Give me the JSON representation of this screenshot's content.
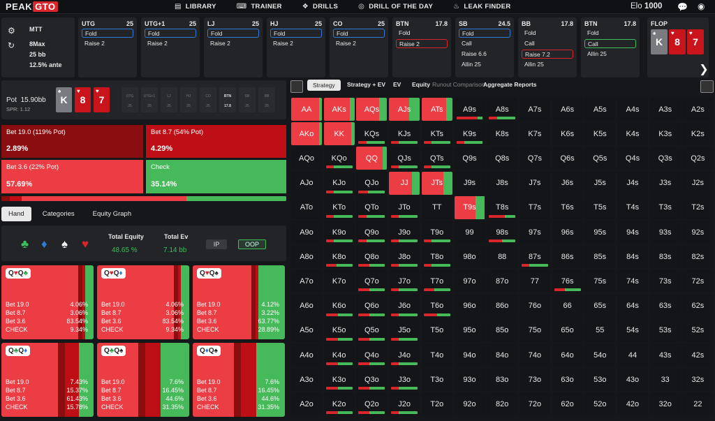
{
  "brand": {
    "part1": "PEAK",
    "part2": "GTO"
  },
  "nav": [
    {
      "icon": "book-icon",
      "label": "LIBRARY",
      "glyph": "▤"
    },
    {
      "icon": "gamepad-icon",
      "label": "TRAINER",
      "glyph": "⌨"
    },
    {
      "icon": "drills-icon",
      "label": "DRILLS",
      "glyph": "❖"
    },
    {
      "icon": "target-icon",
      "label": "DRILL OF THE DAY",
      "glyph": "◎"
    },
    {
      "icon": "flame-icon",
      "label": "LEAK FINDER",
      "glyph": "♨"
    }
  ],
  "elo": {
    "label": "Elo",
    "value": "1000"
  },
  "game": {
    "type": "MTT",
    "players": "8Max",
    "stack": "25 bb",
    "ante": "12.5% ante"
  },
  "positions": [
    {
      "name": "UTG",
      "stack": "25",
      "actions": [
        {
          "label": "Fold",
          "sel": "blue"
        },
        {
          "label": "Raise 2",
          "sel": ""
        }
      ]
    },
    {
      "name": "UTG+1",
      "stack": "25",
      "actions": [
        {
          "label": "Fold",
          "sel": "blue"
        },
        {
          "label": "Raise 2",
          "sel": ""
        }
      ]
    },
    {
      "name": "LJ",
      "stack": "25",
      "actions": [
        {
          "label": "Fold",
          "sel": "blue"
        },
        {
          "label": "Raise 2",
          "sel": ""
        }
      ]
    },
    {
      "name": "HJ",
      "stack": "25",
      "actions": [
        {
          "label": "Fold",
          "sel": "blue"
        },
        {
          "label": "Raise 2",
          "sel": ""
        }
      ]
    },
    {
      "name": "CO",
      "stack": "25",
      "actions": [
        {
          "label": "Fold",
          "sel": "blue"
        },
        {
          "label": "Raise 2",
          "sel": ""
        }
      ]
    },
    {
      "name": "BTN",
      "stack": "17.8",
      "actions": [
        {
          "label": "Fold",
          "sel": ""
        },
        {
          "label": "Raise 2",
          "sel": "red"
        }
      ]
    },
    {
      "name": "SB",
      "stack": "24.5",
      "actions": [
        {
          "label": "Fold",
          "sel": "blue"
        },
        {
          "label": "Call",
          "sel": ""
        },
        {
          "label": "Raise 6.6",
          "sel": ""
        },
        {
          "label": "Allin 25",
          "sel": ""
        }
      ]
    },
    {
      "name": "BB",
      "stack": "17.8",
      "actions": [
        {
          "label": "Fold",
          "sel": ""
        },
        {
          "label": "Call",
          "sel": ""
        },
        {
          "label": "Raise 7.2",
          "sel": "red"
        },
        {
          "label": "Allin 25",
          "sel": ""
        }
      ]
    },
    {
      "name": "BTN",
      "stack": "17.8",
      "actions": [
        {
          "label": "Fold",
          "sel": ""
        },
        {
          "label": "Call",
          "sel": "green"
        },
        {
          "label": "Allin 25",
          "sel": ""
        }
      ]
    }
  ],
  "flop": {
    "label": "FLOP",
    "cards": [
      {
        "rank": "K",
        "suit": "♠",
        "color": "grey"
      },
      {
        "rank": "8",
        "suit": "♥",
        "color": "red"
      },
      {
        "rank": "7",
        "suit": "♥",
        "color": "red"
      }
    ]
  },
  "pot": {
    "label": "Pot",
    "value": "15.90bb",
    "spr": "SPR: 1.12",
    "cards": [
      {
        "rank": "K",
        "suit": "♠",
        "color": "grey"
      },
      {
        "rank": "8",
        "suit": "♥",
        "color": "red"
      },
      {
        "rank": "7",
        "suit": "♥",
        "color": "red"
      }
    ],
    "mini": [
      {
        "name": "UTG",
        "stack": "25"
      },
      {
        "name": "UTG+1",
        "stack": "25"
      },
      {
        "name": "LJ",
        "stack": "25"
      },
      {
        "name": "HJ",
        "stack": "25"
      },
      {
        "name": "CO",
        "stack": "25"
      },
      {
        "name": "BTN",
        "stack": "17.8"
      },
      {
        "name": "SB",
        "stack": "25"
      },
      {
        "name": "BB",
        "stack": "25"
      }
    ]
  },
  "actions": [
    {
      "label": "Bet 19.0 (119% Pot)",
      "freq": "2.89%",
      "color": "#8a0d10",
      "fraction": 0.0289
    },
    {
      "label": "Bet 8.7 (54% Pot)",
      "freq": "4.29%",
      "color": "#bf0f16",
      "fraction": 0.0429
    },
    {
      "label": "Bet 3.6 (22% Pot)",
      "freq": "57.69%",
      "color": "#ec3d44",
      "fraction": 0.5769
    },
    {
      "label": "Check",
      "freq": "35.14%",
      "color": "#46b95a",
      "fraction": 0.3514
    }
  ],
  "tabs": [
    "Hand",
    "Categories",
    "Equity Graph"
  ],
  "equity": {
    "suits": [
      "♣",
      "♦",
      "♠",
      "♥"
    ],
    "suit_colors": [
      "#3bbf5b",
      "#2f7bd8",
      "#f0f0f0",
      "#d9252c"
    ],
    "total_equity_label": "Total Equity",
    "total_equity": "48.65 %",
    "total_ev_label": "Total Ev",
    "total_ev": "7.14 bb",
    "ip": "IP",
    "oop": "OOP"
  },
  "combos": [
    {
      "cards": [
        {
          "r": "Q",
          "s": "♥",
          "c": "#d9252c"
        },
        {
          "r": "Q",
          "s": "♣",
          "c": "#2e9e49"
        }
      ],
      "vals": [
        "4.06%",
        "3.06%",
        "83.54%",
        "9.34%"
      ]
    },
    {
      "cards": [
        {
          "r": "Q",
          "s": "♥",
          "c": "#d9252c"
        },
        {
          "r": "Q",
          "s": "♦",
          "c": "#2f7bd8"
        }
      ],
      "vals": [
        "4.06%",
        "3.06%",
        "83.54%",
        "9.34%"
      ]
    },
    {
      "cards": [
        {
          "r": "Q",
          "s": "♥",
          "c": "#d9252c"
        },
        {
          "r": "Q",
          "s": "♠",
          "c": "#222"
        }
      ],
      "vals": [
        "4.12%",
        "3.22%",
        "63.77%",
        "28.89%"
      ]
    },
    {
      "cards": [
        {
          "r": "Q",
          "s": "♣",
          "c": "#2e9e49"
        },
        {
          "r": "Q",
          "s": "♦",
          "c": "#2f7bd8"
        }
      ],
      "vals": [
        "7.43%",
        "15.37%",
        "61.43%",
        "15.78%"
      ]
    },
    {
      "cards": [
        {
          "r": "Q",
          "s": "♣",
          "c": "#2e9e49"
        },
        {
          "r": "Q",
          "s": "♠",
          "c": "#222"
        }
      ],
      "vals": [
        "7.6%",
        "16.45%",
        "44.6%",
        "31.35%"
      ]
    },
    {
      "cards": [
        {
          "r": "Q",
          "s": "♦",
          "c": "#2f7bd8"
        },
        {
          "r": "Q",
          "s": "♠",
          "c": "#222"
        }
      ],
      "vals": [
        "7.6%",
        "16.45%",
        "44.6%",
        "31.35%"
      ]
    }
  ],
  "combo_labels": [
    "Bet 19.0",
    "Bet 8.7",
    "Bet 3.6",
    "CHECK"
  ],
  "right_tabs": [
    "Strategy",
    "Strategy + EV",
    "EV",
    "Equity",
    "Runout Comparison",
    "Aggregate Reports"
  ],
  "grid": {
    "labels": [
      [
        "AA",
        "AKs",
        "AQs",
        "AJs",
        "ATs",
        "A9s",
        "A8s",
        "A7s",
        "A6s",
        "A5s",
        "A4s",
        "A3s",
        "A2s"
      ],
      [
        "AKo",
        "KK",
        "KQs",
        "KJs",
        "KTs",
        "K9s",
        "K8s",
        "K7s",
        "K6s",
        "K5s",
        "K4s",
        "K3s",
        "K2s"
      ],
      [
        "AQo",
        "KQo",
        "QQ",
        "QJs",
        "QTs",
        "Q9s",
        "Q8s",
        "Q7s",
        "Q6s",
        "Q5s",
        "Q4s",
        "Q3s",
        "Q2s"
      ],
      [
        "AJo",
        "KJo",
        "QJo",
        "JJ",
        "JTs",
        "J9s",
        "J8s",
        "J7s",
        "J6s",
        "J5s",
        "J4s",
        "J3s",
        "J2s"
      ],
      [
        "ATo",
        "KTo",
        "QTo",
        "JTo",
        "TT",
        "T9s",
        "T8s",
        "T7s",
        "T6s",
        "T5s",
        "T4s",
        "T3s",
        "T2s"
      ],
      [
        "A9o",
        "K9o",
        "Q9o",
        "J9o",
        "T9o",
        "99",
        "98s",
        "97s",
        "96s",
        "95s",
        "94s",
        "93s",
        "92s"
      ],
      [
        "A8o",
        "K8o",
        "Q8o",
        "J8o",
        "T8o",
        "98o",
        "88",
        "87s",
        "86s",
        "85s",
        "84s",
        "83s",
        "82s"
      ],
      [
        "A7o",
        "K7o",
        "Q7o",
        "J7o",
        "T7o",
        "97o",
        "87o",
        "77",
        "76s",
        "75s",
        "74s",
        "73s",
        "72s"
      ],
      [
        "A6o",
        "K6o",
        "Q6o",
        "J6o",
        "T6o",
        "96o",
        "86o",
        "76o",
        "66",
        "65s",
        "64s",
        "63s",
        "62s"
      ],
      [
        "A5o",
        "K5o",
        "Q5o",
        "J5o",
        "T5o",
        "95o",
        "85o",
        "75o",
        "65o",
        "55",
        "54s",
        "53s",
        "52s"
      ],
      [
        "A4o",
        "K4o",
        "Q4o",
        "J4o",
        "T4o",
        "94o",
        "84o",
        "74o",
        "64o",
        "54o",
        "44",
        "43s",
        "42s"
      ],
      [
        "A3o",
        "K3o",
        "Q3o",
        "J3o",
        "T3o",
        "93o",
        "83o",
        "73o",
        "63o",
        "53o",
        "43o",
        "33",
        "32s"
      ],
      [
        "A2o",
        "K2o",
        "Q2o",
        "J2o",
        "T2o",
        "92o",
        "82o",
        "72o",
        "62o",
        "52o",
        "42o",
        "32o",
        "22"
      ]
    ],
    "full": {
      "0,0": [
        0.9,
        0.1
      ],
      "0,1": [
        0.85,
        0.15
      ],
      "0,2": [
        0.75,
        0.25
      ],
      "0,3": [
        0.65,
        0.35
      ],
      "0,4": [
        0.8,
        0.2
      ],
      "1,0": [
        0.9,
        0.1
      ],
      "1,1": [
        0.9,
        0.1
      ],
      "2,2": [
        0.85,
        0.15
      ],
      "3,3": [
        0.75,
        0.25
      ],
      "3,4": [
        0.7,
        0.3
      ],
      "4,5": [
        0.7,
        0.3
      ]
    },
    "bars": {
      "0,5": [
        0.8,
        0.2
      ],
      "3,1": [
        0.3,
        0.7
      ],
      "3,2": [
        0.35,
        0.65
      ],
      "3,3": [
        0.3,
        0.7
      ],
      "4,6": [
        0.6,
        0.4
      ],
      "5,6": [
        0.5,
        0.5
      ],
      "6,7": [
        0.3,
        0.7
      ],
      "6,1": [
        0.4,
        0.6
      ],
      "6,2": [
        0.4,
        0.6
      ],
      "6,3": [
        0.3,
        0.7
      ],
      "7,2": [
        0.4,
        0.6
      ],
      "7,3": [
        0.3,
        0.7
      ],
      "7,4": [
        0.4,
        0.6
      ],
      "7,8": [
        0.4,
        0.6
      ],
      "8,1": [
        0.45,
        0.55
      ],
      "8,2": [
        0.4,
        0.6
      ],
      "8,3": [
        0.3,
        0.7
      ],
      "8,4": [
        0.5,
        0.5
      ],
      "9,1": [
        0.45,
        0.55
      ],
      "9,2": [
        0.4,
        0.6
      ],
      "9,3": [
        0.3,
        0.7
      ],
      "10,1": [
        0.45,
        0.55
      ],
      "10,2": [
        0.4,
        0.6
      ],
      "10,3": [
        0.3,
        0.7
      ],
      "11,1": [
        0.45,
        0.55
      ],
      "11,2": [
        0.4,
        0.6
      ],
      "11,3": [
        0.3,
        0.7
      ],
      "12,1": [
        0.45,
        0.55
      ],
      "12,2": [
        0.4,
        0.6
      ],
      "12,3": [
        0.3,
        0.7
      ],
      "2,1": [
        0.3,
        0.7
      ],
      "2,3": [
        0.3,
        0.7
      ],
      "2,4": [
        0.3,
        0.7
      ],
      "1,2": [
        0.3,
        0.7
      ],
      "1,3": [
        0.3,
        0.7
      ],
      "1,4": [
        0.3,
        0.7
      ],
      "1,5": [
        0.3,
        0.7
      ],
      "4,1": [
        0.3,
        0.7
      ],
      "4,2": [
        0.3,
        0.7
      ],
      "4,3": [
        0.3,
        0.7
      ],
      "5,1": [
        0.3,
        0.7
      ],
      "5,2": [
        0.3,
        0.7
      ],
      "5,3": [
        0.3,
        0.7
      ],
      "5,4": [
        0.3,
        0.7
      ],
      "6,4": [
        0.3,
        0.7
      ],
      "0,6": [
        0.3,
        0.7
      ]
    }
  },
  "colors": {
    "bg": "#16171a",
    "panel": "#232427",
    "red": "#ec3d44",
    "darkred": "#8a0d10",
    "midred": "#bf0f16",
    "green": "#46b95a",
    "blue": "#2f7bd8"
  }
}
